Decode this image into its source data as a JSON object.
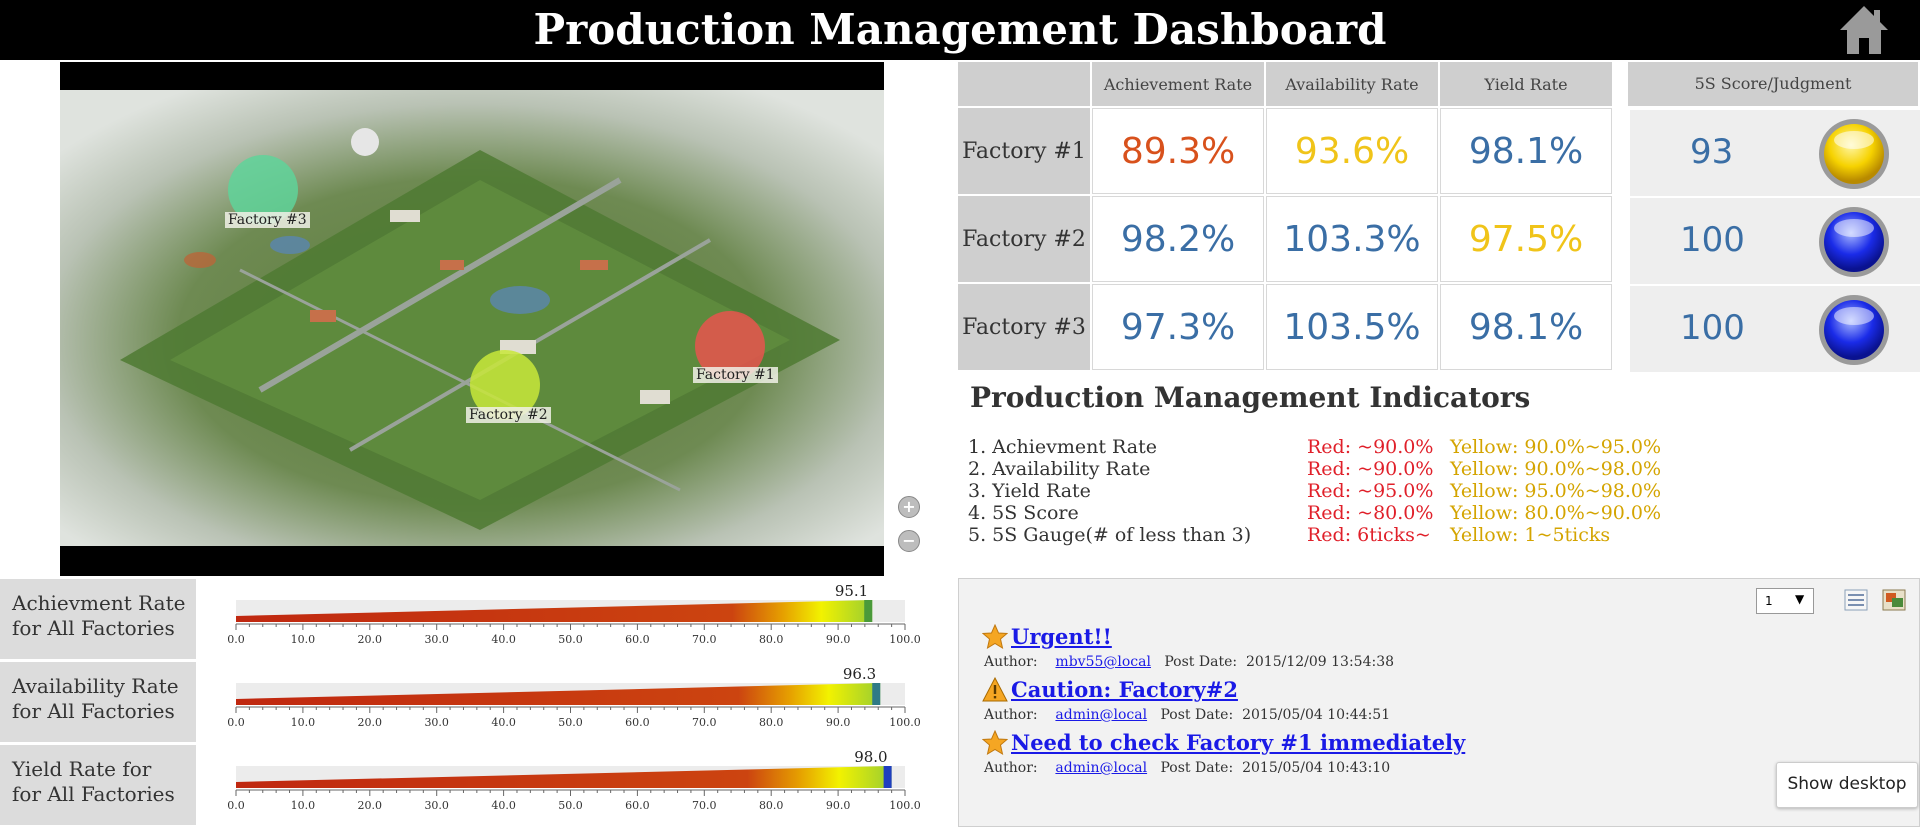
{
  "header": {
    "title": "Production Management Dashboard",
    "home_icon": "home-icon"
  },
  "map": {
    "factories": [
      {
        "label": "Factory #3",
        "color": "#5fd39a"
      },
      {
        "label": "Factory #1",
        "color": "#e8544e"
      },
      {
        "label": "Factory #2",
        "color": "#c8e83a"
      }
    ],
    "zoom_in": "+",
    "zoom_out": "−"
  },
  "table": {
    "headers": [
      "Achievement Rate",
      "Availability Rate",
      "Yield Rate",
      "5S Score/Judgment"
    ],
    "rows": [
      {
        "factory": "Factory #1",
        "achievement": "89.3%",
        "availability": "93.6%",
        "yield": "98.1%",
        "score": "93",
        "colors": {
          "achievement": "#d8511c",
          "availability": "#f0c419",
          "yield": "#3a6ea5"
        },
        "judgment": "yellow"
      },
      {
        "factory": "Factory #2",
        "achievement": "98.2%",
        "availability": "103.3%",
        "yield": "97.5%",
        "score": "100",
        "colors": {
          "achievement": "#3a6ea5",
          "availability": "#3a6ea5",
          "yield": "#f0c419"
        },
        "judgment": "blue"
      },
      {
        "factory": "Factory #3",
        "achievement": "97.3%",
        "availability": "103.5%",
        "yield": "98.1%",
        "score": "100",
        "colors": {
          "achievement": "#3a6ea5",
          "availability": "#3a6ea5",
          "yield": "#3a6ea5"
        },
        "judgment": "blue"
      }
    ]
  },
  "indicators": {
    "title": "Production Management Indicators",
    "items": [
      {
        "name": "1.  Achievment Rate",
        "red": "Red: ~90.0%",
        "yellow": "Yellow:  90.0%~95.0%"
      },
      {
        "name": "2.  Availability Rate",
        "red": "Red: ~90.0%",
        "yellow": "Yellow:  90.0%~98.0%"
      },
      {
        "name": "3.  Yield Rate",
        "red": "Red: ~95.0%",
        "yellow": "Yellow:  95.0%~98.0%"
      },
      {
        "name": "4.  5S Score",
        "red": "Red: ~80.0%",
        "yellow": "Yellow:  80.0%~90.0%"
      },
      {
        "name": "5.  5S Gauge(# of less than 3)",
        "red": "Red: 6ticks~",
        "yellow": "Yellow:  1~5ticks"
      }
    ]
  },
  "gauges": {
    "items": [
      {
        "label_line1": "Achievment Rate",
        "label_line2": "for All Factories",
        "value": 95.1,
        "value_text": "95.1",
        "end_color": "#4a9a3a"
      },
      {
        "label_line1": "Availability Rate",
        "label_line2": "for All Factories",
        "value": 96.3,
        "value_text": "96.3",
        "end_color": "#2f7a86"
      },
      {
        "label_line1": "Yield Rate for",
        "label_line2": "for All Factories",
        "value": 98.0,
        "value_text": "98.0",
        "end_color": "#1f3fbf"
      }
    ],
    "ticks": [
      "0.0",
      "10.0",
      "20.0",
      "30.0",
      "40.0",
      "50.0",
      "60.0",
      "70.0",
      "80.0",
      "90.0",
      "100.0"
    ],
    "range": [
      0,
      100
    ]
  },
  "posts": {
    "page_select": "1",
    "items": [
      {
        "icon": "star-icon",
        "title": "Urgent!!",
        "author_label": "Author:",
        "author": "mbv55@local",
        "date_label": "Post Date:",
        "date": "2015/12/09 13:54:38"
      },
      {
        "icon": "warning-icon",
        "title": "Caution: Factory#2",
        "author_label": "Author:",
        "author": "admin@local",
        "date_label": "Post Date:",
        "date": "2015/05/04 10:44:51"
      },
      {
        "icon": "star-icon",
        "title": "Need to check Factory #1 immediately",
        "author_label": "Author:",
        "author": "admin@local",
        "date_label": "Post Date:",
        "date": "2015/05/04 10:43:10"
      }
    ]
  },
  "taskbar": {
    "show_desktop": "Show desktop"
  }
}
